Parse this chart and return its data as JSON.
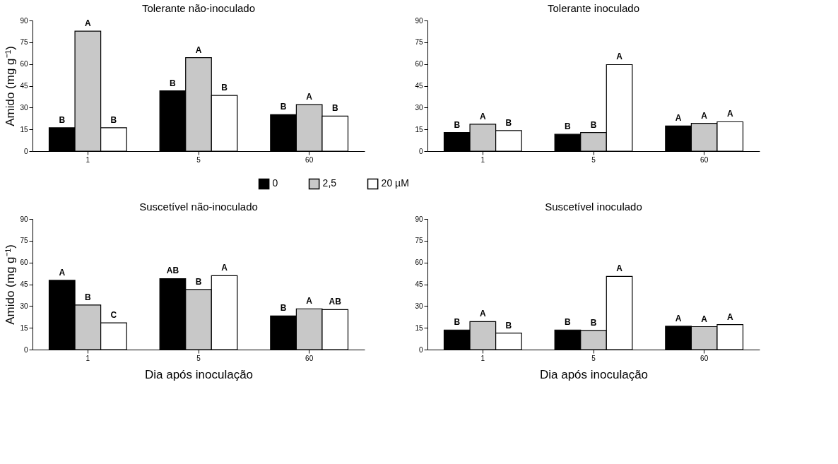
{
  "chart_data": [
    {
      "type": "bar",
      "title": "Tolerante não-inoculado",
      "ylabel": "Amido (mg g⁻¹)",
      "categories": [
        "1",
        "5",
        "60"
      ],
      "ylim": [
        0,
        90
      ],
      "yticks": [
        0,
        15,
        30,
        45,
        60,
        75,
        90
      ],
      "grid": false,
      "legend": "bottom",
      "series": [
        {
          "name": "0",
          "color": "#000000",
          "values": [
            16.1,
            41.5,
            25.1
          ],
          "value_labels": [
            "B",
            "B",
            "B"
          ]
        },
        {
          "name": "2,5",
          "color": "#c8c8c8",
          "values": [
            82.6,
            64.4,
            32.0
          ],
          "value_labels": [
            "A",
            "A",
            "A"
          ]
        },
        {
          "name": "20 µM",
          "color": "#ffffff",
          "values": [
            16.1,
            38.4,
            24.1
          ],
          "value_labels": [
            "B",
            "B",
            "B"
          ]
        }
      ]
    },
    {
      "type": "bar",
      "title": "Tolerante inoculado",
      "categories": [
        "1",
        "5",
        "60"
      ],
      "ylim": [
        0,
        90
      ],
      "yticks": [
        0,
        15,
        30,
        45,
        60,
        75,
        90
      ],
      "grid": false,
      "series": [
        {
          "name": "0",
          "color": "#000000",
          "values": [
            12.8,
            11.6,
            17.3
          ],
          "value_labels": [
            "B",
            "B",
            "A"
          ]
        },
        {
          "name": "2,5",
          "color": "#c8c8c8",
          "values": [
            18.5,
            12.8,
            19.2
          ],
          "value_labels": [
            "A",
            "B",
            "A"
          ]
        },
        {
          "name": "20 µM",
          "color": "#ffffff",
          "values": [
            14.2,
            59.6,
            20.2
          ],
          "value_labels": [
            "B",
            "A",
            "A"
          ]
        }
      ]
    },
    {
      "type": "bar",
      "title": "Suscetível não-inoculado",
      "ylabel": "Amido (mg g⁻¹)",
      "xlabel": "Dia após inoculação",
      "categories": [
        "1",
        "5",
        "60"
      ],
      "ylim": [
        0,
        90
      ],
      "yticks": [
        0,
        15,
        30,
        45,
        60,
        75,
        90
      ],
      "grid": false,
      "series": [
        {
          "name": "0",
          "color": "#000000",
          "values": [
            47.7,
            48.9,
            23.2
          ],
          "value_labels": [
            "A",
            "AB",
            "B"
          ]
        },
        {
          "name": "2,5",
          "color": "#c8c8c8",
          "values": [
            30.7,
            41.4,
            28.1
          ],
          "value_labels": [
            "B",
            "B",
            "A"
          ]
        },
        {
          "name": "20 µM",
          "color": "#ffffff",
          "values": [
            18.4,
            50.9,
            27.5
          ],
          "value_labels": [
            "C",
            "A",
            "AB"
          ]
        }
      ]
    },
    {
      "type": "bar",
      "title": "Suscetível inoculado",
      "xlabel": "Dia após inoculação",
      "categories": [
        "1",
        "5",
        "60"
      ],
      "ylim": [
        0,
        90
      ],
      "yticks": [
        0,
        15,
        30,
        45,
        60,
        75,
        90
      ],
      "grid": false,
      "series": [
        {
          "name": "0",
          "color": "#000000",
          "values": [
            13.5,
            13.5,
            16.1
          ],
          "value_labels": [
            "B",
            "B",
            "A"
          ]
        },
        {
          "name": "2,5",
          "color": "#c8c8c8",
          "values": [
            19.3,
            13.2,
            15.8
          ],
          "value_labels": [
            "A",
            "B",
            "A"
          ]
        },
        {
          "name": "20 µM",
          "color": "#ffffff",
          "values": [
            11.4,
            50.4,
            17.2
          ],
          "value_labels": [
            "B",
            "A",
            "A"
          ]
        }
      ]
    }
  ]
}
